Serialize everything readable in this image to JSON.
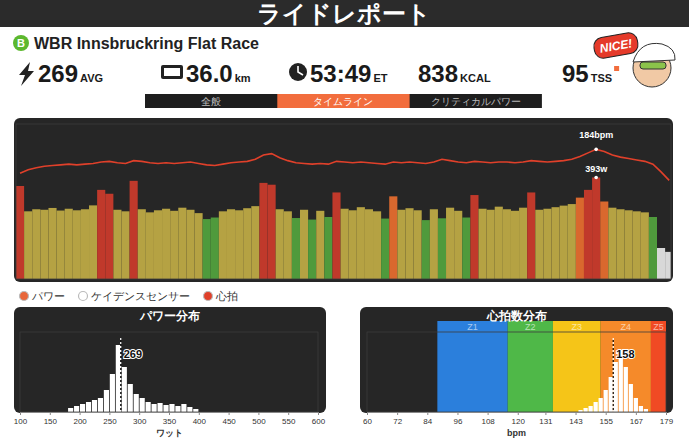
{
  "header": {
    "title": "ライドレポート",
    "category": "B",
    "route": "WBR Innsbruckring Flat Race",
    "badge": "NICE!"
  },
  "stats": [
    {
      "value": "269",
      "unit": "AVG"
    },
    {
      "value": "36.0",
      "unit": "km"
    },
    {
      "value": "53:49",
      "unit": "ET"
    },
    {
      "value": "838",
      "unit": "KCAL"
    },
    {
      "value": "95",
      "unit": "TSS"
    }
  ],
  "tabs": [
    {
      "label": "全般"
    },
    {
      "label": "タイムライン",
      "active": true
    },
    {
      "label": "クリティカルパワー"
    }
  ],
  "chart_data": [
    {
      "type": "bar",
      "legend": "bottom",
      "tick_labels": false,
      "x": [
        20,
        60,
        100,
        140,
        180,
        220,
        260,
        300,
        340,
        380,
        420,
        460,
        500,
        540,
        580,
        620,
        660,
        700,
        740,
        780,
        820,
        860,
        900,
        940,
        980,
        1020,
        1060,
        1100,
        1140,
        1180,
        1220,
        1260,
        1300,
        1340,
        1380,
        1420,
        1460,
        1500,
        1540,
        1580,
        1620,
        1660,
        1700,
        1740,
        1780,
        1820,
        1860,
        1900,
        1940,
        1980,
        2020,
        2060,
        2100,
        2140,
        2180,
        2220,
        2260,
        2300,
        2340,
        2380,
        2420,
        2460,
        2500,
        2540,
        2580,
        2620,
        2660,
        2700,
        2740,
        2780,
        2820,
        2860,
        2900,
        2940,
        2980,
        3020,
        3060,
        3100,
        3140,
        3180,
        3220
      ],
      "xlim": [
        0,
        3229
      ],
      "ylim": [
        0,
        600
      ],
      "y2lim": [
        0,
        220
      ],
      "series": [
        {
          "name": "パワー",
          "type": "bar",
          "color": "#e8663a",
          "values": [
            360,
            262,
            270,
            268,
            275,
            265,
            272,
            266,
            270,
            285,
            345,
            330,
            268,
            262,
            380,
            270,
            258,
            266,
            272,
            264,
            276,
            268,
            255,
            232,
            238,
            262,
            270,
            266,
            274,
            282,
            372,
            365,
            270,
            262,
            236,
            268,
            230,
            264,
            240,
            335,
            272,
            266,
            278,
            270,
            262,
            234,
            320,
            268,
            274,
            266,
            228,
            270,
            235,
            276,
            264,
            238,
            325,
            272,
            268,
            280,
            270,
            264,
            276,
            335,
            268,
            272,
            278,
            284,
            290,
            315,
            345,
            393,
            300,
            276,
            270,
            266,
            262,
            258,
            240,
            120,
            105
          ],
          "colors": [
            "#c0392b",
            "#b5a243",
            "#b5a243",
            "#b5a243",
            "#b5a243",
            "#b5a243",
            "#b5a243",
            "#b5a243",
            "#b5a243",
            "#b5a243",
            "#c0392b",
            "#c0392b",
            "#b5a243",
            "#b5a243",
            "#c0392b",
            "#b5a243",
            "#b5a243",
            "#b5a243",
            "#b5a243",
            "#b5a243",
            "#b5a243",
            "#b5a243",
            "#b5a243",
            "#4f9a3c",
            "#4f9a3c",
            "#b5a243",
            "#b5a243",
            "#b5a243",
            "#b5a243",
            "#b5a243",
            "#c0392b",
            "#c0392b",
            "#b5a243",
            "#b5a243",
            "#4f9a3c",
            "#b5a243",
            "#4f9a3c",
            "#b5a243",
            "#4f9a3c",
            "#c0392b",
            "#b5a243",
            "#b5a243",
            "#b5a243",
            "#b5a243",
            "#b5a243",
            "#4f9a3c",
            "#d9682e",
            "#b5a243",
            "#b5a243",
            "#b5a243",
            "#4f9a3c",
            "#b5a243",
            "#4f9a3c",
            "#b5a243",
            "#b5a243",
            "#4f9a3c",
            "#c0392b",
            "#b5a243",
            "#b5a243",
            "#b5a243",
            "#b5a243",
            "#b5a243",
            "#b5a243",
            "#c0392b",
            "#b5a243",
            "#b5a243",
            "#b5a243",
            "#b5a243",
            "#b5a243",
            "#d9682e",
            "#c0392b",
            "#c0392b",
            "#d9682e",
            "#b5a243",
            "#b5a243",
            "#b5a243",
            "#b5a243",
            "#b5a243",
            "#4f9a3c",
            "#d8d8d8",
            "#d8d8d8"
          ]
        },
        {
          "name": "ケイデンスセンサー",
          "type": "line",
          "color": "#ffffff",
          "values": [
            null,
            null,
            null,
            null,
            null,
            null,
            null,
            null,
            null,
            null,
            null,
            null,
            null,
            null,
            null,
            null,
            null,
            null,
            null,
            null,
            null,
            null,
            null,
            null,
            null,
            null,
            null,
            null,
            null,
            null,
            null,
            null,
            null,
            null,
            null,
            null,
            null,
            null,
            null,
            null,
            null,
            null,
            null,
            null,
            null,
            null,
            null,
            null,
            null,
            null,
            null,
            null,
            null,
            null,
            null,
            null,
            null,
            null,
            null,
            null,
            null,
            null,
            null,
            null,
            null,
            null,
            null,
            null,
            null,
            null,
            null,
            null,
            null,
            null,
            null,
            null,
            null,
            null,
            null,
            null,
            null
          ]
        },
        {
          "name": "心拍",
          "type": "line",
          "color": "#e0402a",
          "axis": "y2",
          "values": [
            150,
            155,
            158,
            160,
            161,
            162,
            163,
            162,
            163,
            164,
            166,
            167,
            165,
            164,
            168,
            167,
            165,
            164,
            165,
            164,
            165,
            166,
            164,
            162,
            161,
            163,
            165,
            166,
            167,
            170,
            176,
            178,
            172,
            168,
            165,
            164,
            163,
            164,
            163,
            167,
            166,
            165,
            166,
            165,
            164,
            163,
            166,
            165,
            166,
            165,
            164,
            166,
            170,
            168,
            166,
            165,
            167,
            166,
            165,
            166,
            166,
            165,
            166,
            168,
            167,
            166,
            167,
            168,
            170,
            174,
            179,
            184,
            181,
            176,
            173,
            171,
            169,
            167,
            163,
            152,
            140
          ]
        }
      ],
      "annotations": [
        {
          "text": "184bpm",
          "x": 2860,
          "y": 184,
          "axis": "y2"
        },
        {
          "text": "393w",
          "x": 2860,
          "y": 393
        }
      ]
    },
    {
      "type": "histogram",
      "title": "パワー分布",
      "xlabel": "ワット",
      "tick_labels": "x",
      "color": "#ffffff",
      "bins": [
        180,
        190,
        200,
        210,
        220,
        230,
        240,
        250,
        260,
        270,
        280,
        290,
        300,
        310,
        320,
        330,
        340,
        350,
        360,
        370,
        380,
        390,
        400
      ],
      "values": [
        4,
        6,
        8,
        10,
        12,
        14,
        22,
        38,
        67,
        45,
        28,
        18,
        14,
        10,
        8,
        9,
        7,
        8,
        6,
        8,
        5,
        3
      ],
      "xlim": [
        100,
        600
      ],
      "xticks": [
        100,
        150,
        200,
        250,
        300,
        350,
        400,
        450,
        500,
        550,
        600
      ],
      "ylim": [
        0,
        80
      ],
      "annotations": [
        {
          "x": 269,
          "text": "269"
        }
      ]
    },
    {
      "type": "histogram",
      "title": "心拍数分布",
      "xlabel": "bpm",
      "tick_labels": "x",
      "color": "#ffffff",
      "bins": [
        144,
        146,
        148,
        150,
        152,
        154,
        156,
        158,
        160,
        162,
        164,
        166,
        168,
        170,
        172
      ],
      "values": [
        2,
        4,
        6,
        10,
        14,
        22,
        35,
        50,
        62,
        45,
        28,
        14,
        6,
        3
      ],
      "xlim": [
        60,
        179
      ],
      "xticks": [
        60,
        72,
        84,
        96,
        108,
        120,
        131,
        143,
        155,
        167,
        179
      ],
      "ylim": [
        0,
        80
      ],
      "zones": [
        {
          "label": "Z1",
          "from": 88,
          "to": 116,
          "color": "#2b7fdc"
        },
        {
          "label": "Z2",
          "from": 116,
          "to": 134,
          "color": "#4fb848"
        },
        {
          "label": "Z3",
          "from": 134,
          "to": 153,
          "color": "#f5c518"
        },
        {
          "label": "Z4",
          "from": 153,
          "to": 173,
          "color": "#f58a2a"
        },
        {
          "label": "Z5",
          "from": 173,
          "to": 179,
          "color": "#f04a24"
        }
      ],
      "annotations": [
        {
          "x": 158,
          "text": "158"
        }
      ]
    }
  ]
}
